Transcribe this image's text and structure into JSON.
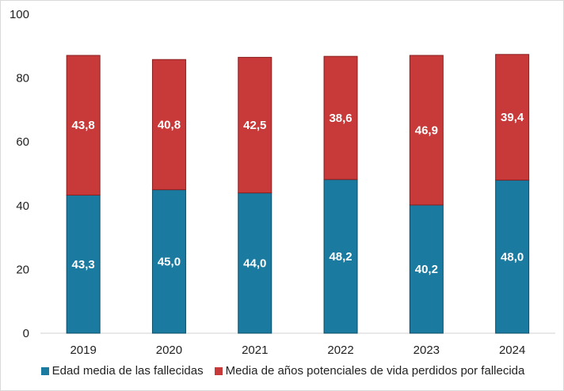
{
  "chart_data": {
    "type": "bar",
    "stacked": true,
    "categories": [
      "2019",
      "2020",
      "2021",
      "2022",
      "2023",
      "2024"
    ],
    "series": [
      {
        "name": "Edad media de las fallecidas",
        "values": [
          43.3,
          45.0,
          44.0,
          48.2,
          40.2,
          48.0
        ],
        "labels": [
          "43,3",
          "45,0",
          "44,0",
          "48,2",
          "40,2",
          "48,0"
        ],
        "color": "#1a7aa0"
      },
      {
        "name": "Media de años potenciales de vida perdidos por fallecida",
        "values": [
          43.8,
          40.8,
          42.5,
          38.6,
          46.9,
          39.4
        ],
        "labels": [
          "43,8",
          "40,8",
          "42,5",
          "38,6",
          "46,9",
          "39,4"
        ],
        "color": "#c83a3a"
      }
    ],
    "ylim": [
      0,
      100
    ],
    "yticks": [
      "0",
      "20",
      "40",
      "60",
      "80",
      "100"
    ],
    "grid": false,
    "legend": "bottom"
  }
}
